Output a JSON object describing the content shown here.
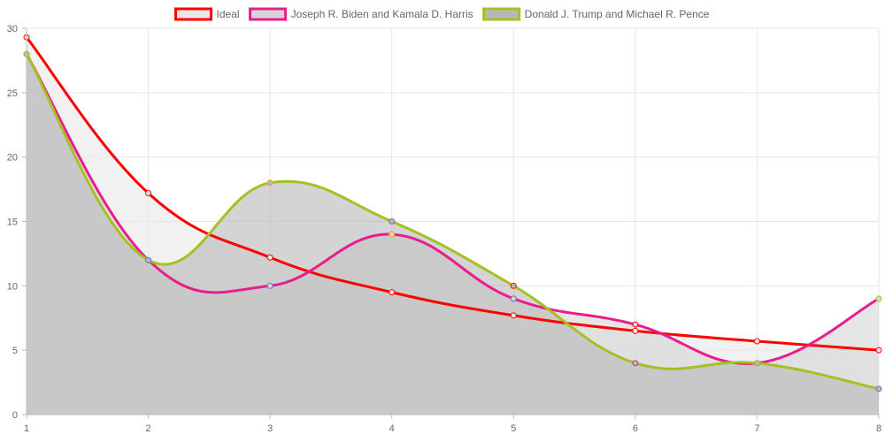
{
  "chart_data": {
    "type": "line",
    "x": [
      1,
      2,
      3,
      4,
      5,
      6,
      7,
      8
    ],
    "xlim": [
      1,
      8
    ],
    "ylim": [
      0,
      30
    ],
    "yticks": [
      0,
      5,
      10,
      15,
      20,
      25,
      30
    ],
    "grid": true,
    "legend_position": "top",
    "series": [
      {
        "name": "Ideal",
        "values": [
          29.3,
          17.2,
          12.2,
          9.5,
          7.7,
          6.5,
          5.7,
          5.0
        ],
        "color": "#ff0000",
        "fill": "#e8e8e8"
      },
      {
        "name": "Joseph R. Biden and Kamala D. Harris",
        "values": [
          28,
          12,
          10,
          14,
          9,
          7,
          4,
          9
        ],
        "color": "#e91e8c",
        "fill": "#d6d6d6"
      },
      {
        "name": "Donald J. Trump and Michael R. Pence",
        "values": [
          28,
          12,
          18,
          15,
          10,
          4,
          4,
          2
        ],
        "color": "#a5c023",
        "fill": "#b8b8b8"
      }
    ]
  }
}
